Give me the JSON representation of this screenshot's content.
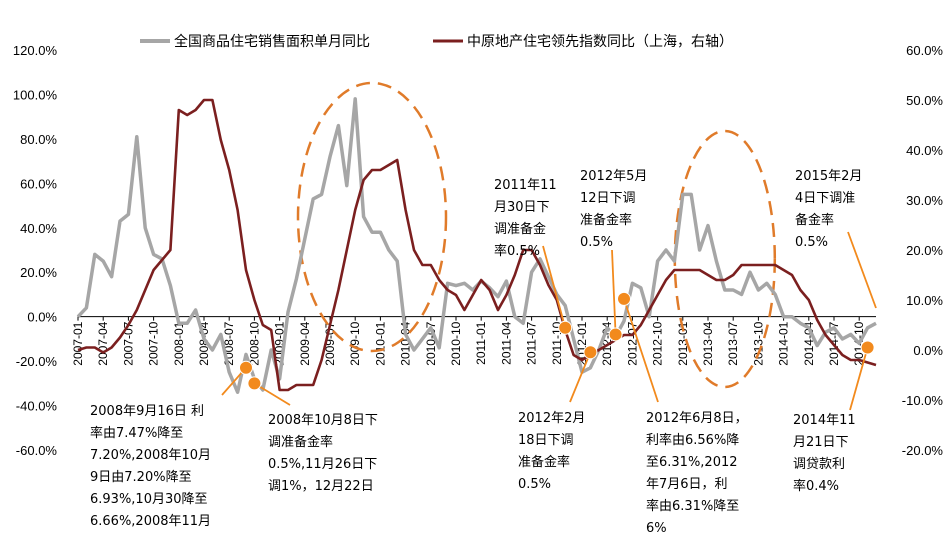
{
  "chart_data": {
    "type": "line",
    "title": "",
    "x": [
      "2007-01",
      "2007-02",
      "2007-03",
      "2007-04",
      "2007-05",
      "2007-06",
      "2007-07",
      "2007-08",
      "2007-09",
      "2007-10",
      "2007-11",
      "2007-12",
      "2008-01",
      "2008-02",
      "2008-03",
      "2008-04",
      "2008-05",
      "2008-06",
      "2008-07",
      "2008-08",
      "2008-09",
      "2008-10",
      "2008-11",
      "2008-12",
      "2009-01",
      "2009-02",
      "2009-03",
      "2009-04",
      "2009-05",
      "2009-06",
      "2009-07",
      "2009-08",
      "2009-09",
      "2009-10",
      "2009-11",
      "2009-12",
      "2010-01",
      "2010-02",
      "2010-03",
      "2010-04",
      "2010-05",
      "2010-06",
      "2010-07",
      "2010-08",
      "2010-09",
      "2010-10",
      "2010-11",
      "2010-12",
      "2011-01",
      "2011-02",
      "2011-03",
      "2011-04",
      "2011-05",
      "2011-06",
      "2011-07",
      "2011-08",
      "2011-09",
      "2011-10",
      "2011-11",
      "2011-12",
      "2012-01",
      "2012-02",
      "2012-03",
      "2012-04",
      "2012-05",
      "2012-06",
      "2012-07",
      "2012-08",
      "2012-09",
      "2012-10",
      "2012-11",
      "2012-12",
      "2013-01",
      "2013-02",
      "2013-03",
      "2013-04",
      "2013-05",
      "2013-06",
      "2013-07",
      "2013-08",
      "2013-09",
      "2013-10",
      "2013-11",
      "2013-12",
      "2014-01",
      "2014-02",
      "2014-03",
      "2014-04",
      "2014-05",
      "2014-06",
      "2014-07",
      "2014-08",
      "2014-09",
      "2014-10",
      "2014-11",
      "2014-12"
    ],
    "x_tick_labels": [
      "2007-01",
      "2007-04",
      "2007-07",
      "2007-10",
      "2008-01",
      "2008-04",
      "2008-07",
      "2008-10",
      "2009-01",
      "2009-04",
      "2009-07",
      "2009-10",
      "2010-01",
      "2010-04",
      "2010-07",
      "2010-10",
      "2011-01",
      "2011-04",
      "2011-07",
      "2011-10",
      "2012-01",
      "2012-04",
      "2012-07",
      "2012-10",
      "2013-01",
      "2013-04",
      "2013-07",
      "2013-10",
      "2014-01",
      "2014-04",
      "2014-07",
      "2014-10"
    ],
    "y_left": {
      "ylim": [
        -60,
        120
      ],
      "ticks": [
        "-60.0%",
        "-40.0%",
        "-20.0%",
        "0.0%",
        "20.0%",
        "40.0%",
        "60.0%",
        "80.0%",
        "100.0%",
        "120.0%"
      ]
    },
    "y_right": {
      "ylim": [
        -20,
        60
      ],
      "ticks": [
        "-20.0%",
        "-10.0%",
        "0.0%",
        "10.0%",
        "20.0%",
        "30.0%",
        "40.0%",
        "50.0%",
        "60.0%"
      ]
    },
    "legend_position": "top",
    "grid": false,
    "series": [
      {
        "name": "全国商品住宅销售面积单月同比",
        "axis": "left",
        "color": "#a6a6a6",
        "values": [
          0,
          4,
          28,
          25,
          18,
          43,
          46,
          81,
          40,
          28,
          26,
          14,
          -3,
          -3,
          3,
          -10,
          -15,
          -8,
          -25,
          -34,
          -17,
          -28,
          -33,
          -15,
          -28,
          2,
          17,
          35,
          53,
          55,
          72,
          86,
          59,
          98,
          45,
          38,
          38,
          30,
          25,
          -8,
          -15,
          -10,
          -5,
          -14,
          15,
          14,
          15,
          12,
          16,
          13,
          9,
          16,
          0,
          -3,
          20,
          26,
          18,
          10,
          5,
          -10,
          -25,
          -23,
          -15,
          -5,
          -9,
          -2,
          15,
          13,
          0,
          25,
          30,
          25,
          55,
          55,
          30,
          41,
          25,
          12,
          12,
          10,
          20,
          12,
          15,
          10,
          0,
          0,
          -3,
          -5,
          -13,
          -7,
          -5,
          -10,
          -8,
          -12,
          -5,
          -3
        ]
      },
      {
        "name": "中原地产住宅领先指数同比（上海，右轴）",
        "axis": "right",
        "color": "#7b1f1f",
        "values": [
          0,
          0.5,
          0.5,
          -0.5,
          0.5,
          2.5,
          5,
          8,
          12,
          16,
          18,
          20,
          48,
          47,
          48,
          50,
          50,
          42,
          36,
          28,
          16,
          10,
          5,
          4,
          -8,
          -8,
          -7,
          -7,
          -7,
          -2,
          5,
          12,
          20,
          28,
          34,
          36,
          36,
          37,
          38,
          28,
          20,
          17,
          17,
          14,
          12,
          11,
          8,
          11,
          14,
          12,
          8,
          11,
          15,
          20,
          20,
          17,
          13,
          10,
          4,
          -1,
          -2,
          -1,
          0,
          1,
          2,
          3,
          3,
          5,
          8,
          11,
          14,
          16,
          16,
          16,
          16,
          15,
          14,
          14,
          15,
          17,
          17,
          17,
          17,
          17,
          16,
          15,
          12,
          10,
          6,
          3,
          1,
          -1,
          -2,
          -2,
          -2.5,
          -3
        ]
      }
    ],
    "annotations": [
      {
        "text": "2008年9月16日 利\n率由7.47%降至\n7.20%,2008年10月\n9日由7.20%降至\n6.93%,10月30降至\n6.66%,2008年11月"
      },
      {
        "text": "2008年10月8日下\n调准备金率\n0.5%,11月26日下\n调1%，12月22日"
      },
      {
        "text": "2011年11\n月30日下\n调准备金\n率0.5%"
      },
      {
        "text": "2012年2月\n18日下调\n准备金率\n0.5%"
      },
      {
        "text": "2012年5月\n12日下调\n准备金率\n0.5%"
      },
      {
        "text": "2012年6月8日，\n利率由6.56%降\n至6.31%,2012\n年7月6日，利\n率由6.31%降至\n6%"
      },
      {
        "text": "2015年2月\n4日下调准\n备金率\n0.5%"
      },
      {
        "text": "2014年11\n月21日下\n调贷款利\n率0.4%"
      }
    ],
    "colors": {
      "annotation_marker": "#f28a1d",
      "ellipse": "#e07b2a"
    }
  }
}
